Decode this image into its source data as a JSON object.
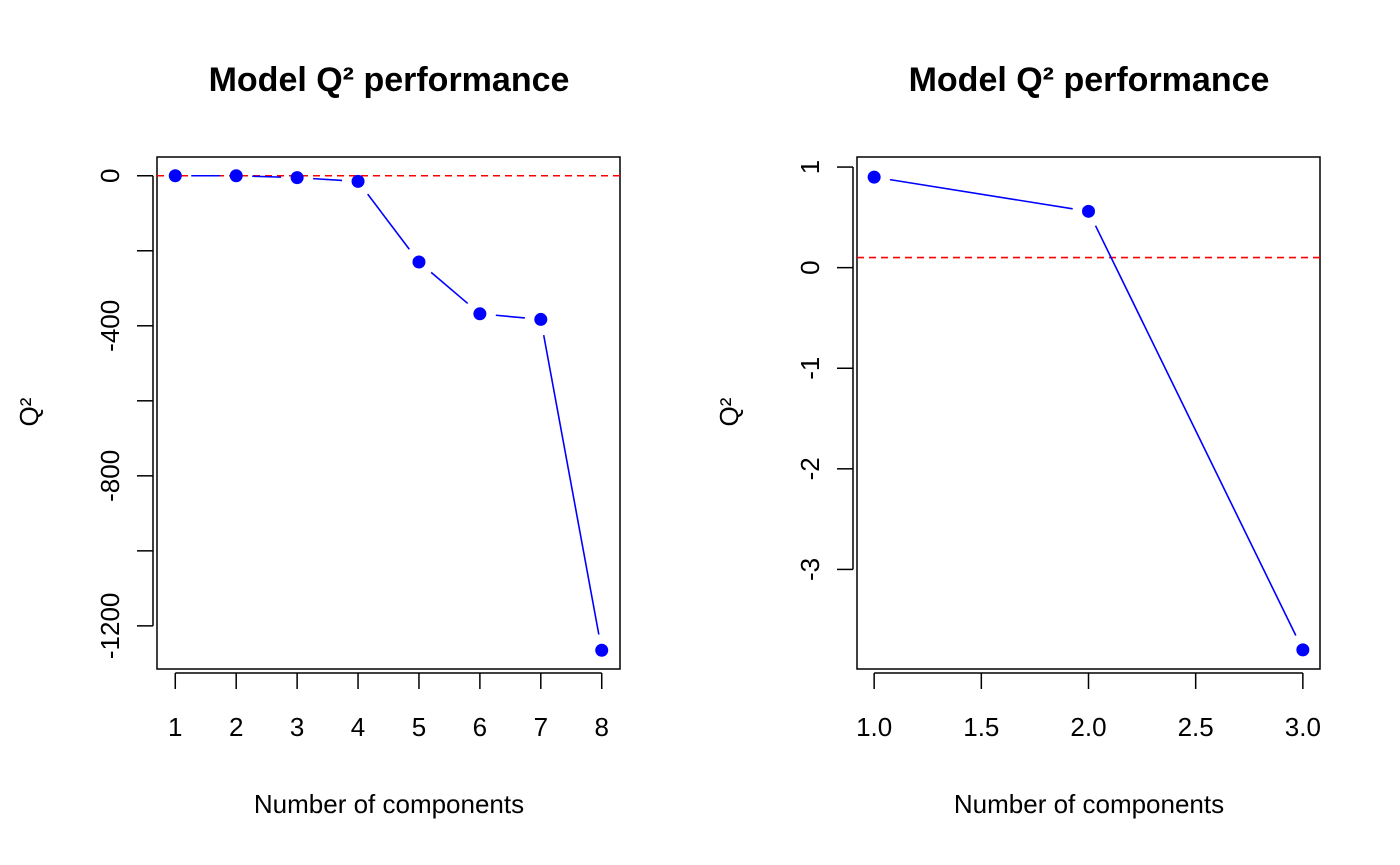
{
  "colors": {
    "series": "#0000ff",
    "reference": "#ff0000",
    "frame": "#000000"
  },
  "chart_data": [
    {
      "type": "line",
      "title": "Model Q² performance",
      "xlabel": "Number of components",
      "ylabel": "Q²",
      "x": [
        1,
        2,
        3,
        4,
        5,
        6,
        7,
        8
      ],
      "series": [
        {
          "values": [
            0,
            0,
            -5,
            -15,
            -230,
            -368,
            -383,
            -1265
          ]
        }
      ],
      "reference_line": {
        "y": 0,
        "style": "dashed"
      },
      "xlim": [
        0.7,
        8.3
      ],
      "ylim": [
        -1315,
        50
      ],
      "xticks": [
        1,
        2,
        3,
        4,
        5,
        6,
        7,
        8
      ],
      "xtick_labels": [
        "1",
        "2",
        "3",
        "4",
        "5",
        "6",
        "7",
        "8"
      ],
      "yticks": [
        0,
        -200,
        -400,
        -600,
        -800,
        -1000,
        -1200
      ],
      "ytick_labels": [
        "0",
        "",
        "-400",
        "",
        "-800",
        "",
        "-1200"
      ],
      "grid": false,
      "legend": "none"
    },
    {
      "type": "line",
      "title": "Model Q² performance",
      "xlabel": "Number of components",
      "ylabel": "Q²",
      "x": [
        1.0,
        2.0,
        3.0
      ],
      "series": [
        {
          "values": [
            0.9,
            0.56,
            -3.8
          ]
        }
      ],
      "reference_line": {
        "y": 0.1,
        "style": "dashed"
      },
      "xlim": [
        0.92,
        3.08
      ],
      "ylim": [
        -3.99,
        1.1
      ],
      "xticks": [
        1.0,
        1.5,
        2.0,
        2.5,
        3.0
      ],
      "xtick_labels": [
        "1.0",
        "1.5",
        "2.0",
        "2.5",
        "3.0"
      ],
      "yticks": [
        1,
        0,
        -1,
        -2,
        -3
      ],
      "ytick_labels": [
        "1",
        "0",
        "-1",
        "-2",
        "-3"
      ],
      "grid": false,
      "legend": "none"
    }
  ]
}
